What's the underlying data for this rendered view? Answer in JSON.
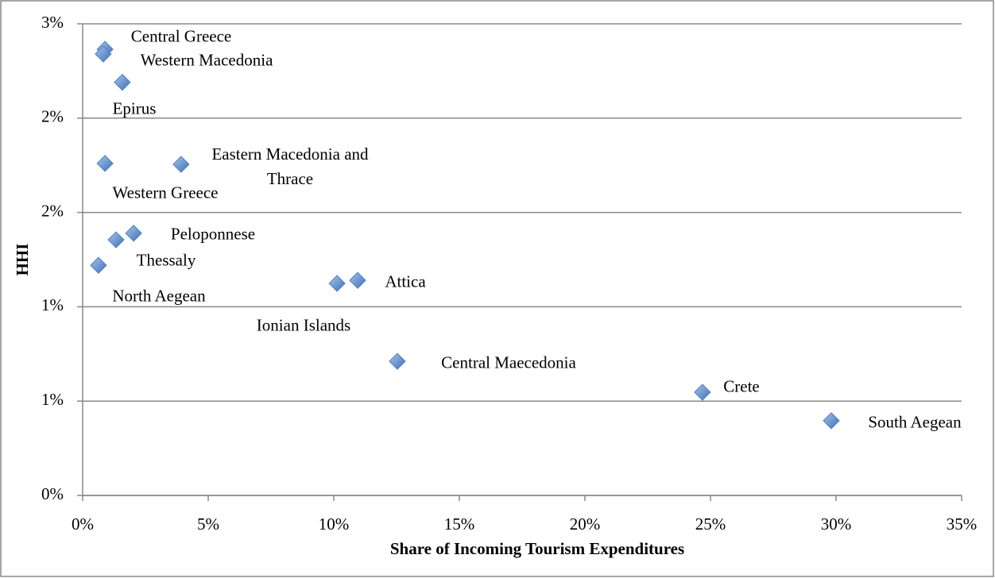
{
  "chart_data": {
    "type": "scatter",
    "xlabel": "Share of Incoming Tourism Expenditures",
    "ylabel": "HHI",
    "point_labels": [
      "Central Greece",
      "Western Macedonia",
      "Epirus",
      "Western Greece",
      "Eastern Macedonia and Thrace",
      "Peloponnese",
      "Thessaly",
      "North Aegean",
      "Ionian Islands",
      "Attica",
      "Central Maecedonia",
      "Crete",
      "South Aegean"
    ],
    "x": [
      0.89,
      0.82,
      1.58,
      0.89,
      3.92,
      2.03,
      1.33,
      0.63,
      10.13,
      10.95,
      12.53,
      24.68,
      29.81
    ],
    "values": [
      2.365,
      2.34,
      2.19,
      1.76,
      1.755,
      1.39,
      1.355,
      1.22,
      1.124,
      1.14,
      0.711,
      0.547,
      0.396
    ],
    "color": "#4f81bd",
    "xlim": [
      0,
      35
    ],
    "xticks": [
      {
        "value": 0,
        "label": "0%"
      },
      {
        "value": 5,
        "label": "5%"
      },
      {
        "value": 10,
        "label": "10%"
      },
      {
        "value": 15,
        "label": "15%"
      },
      {
        "value": 20,
        "label": "20%"
      },
      {
        "value": 25,
        "label": "25%"
      },
      {
        "value": 30,
        "label": "30%"
      },
      {
        "value": 35,
        "label": "35%"
      }
    ],
    "ylim": [
      0,
      2.5
    ],
    "yticks": [
      {
        "value": 0,
        "label": "0%"
      },
      {
        "value": 0.5,
        "label": "1%"
      },
      {
        "value": 1,
        "label": "1%"
      },
      {
        "value": 1.5,
        "label": "2%"
      },
      {
        "value": 2,
        "label": "2%"
      },
      {
        "value": 2.5,
        "label": "3%"
      }
    ],
    "grid": true
  }
}
